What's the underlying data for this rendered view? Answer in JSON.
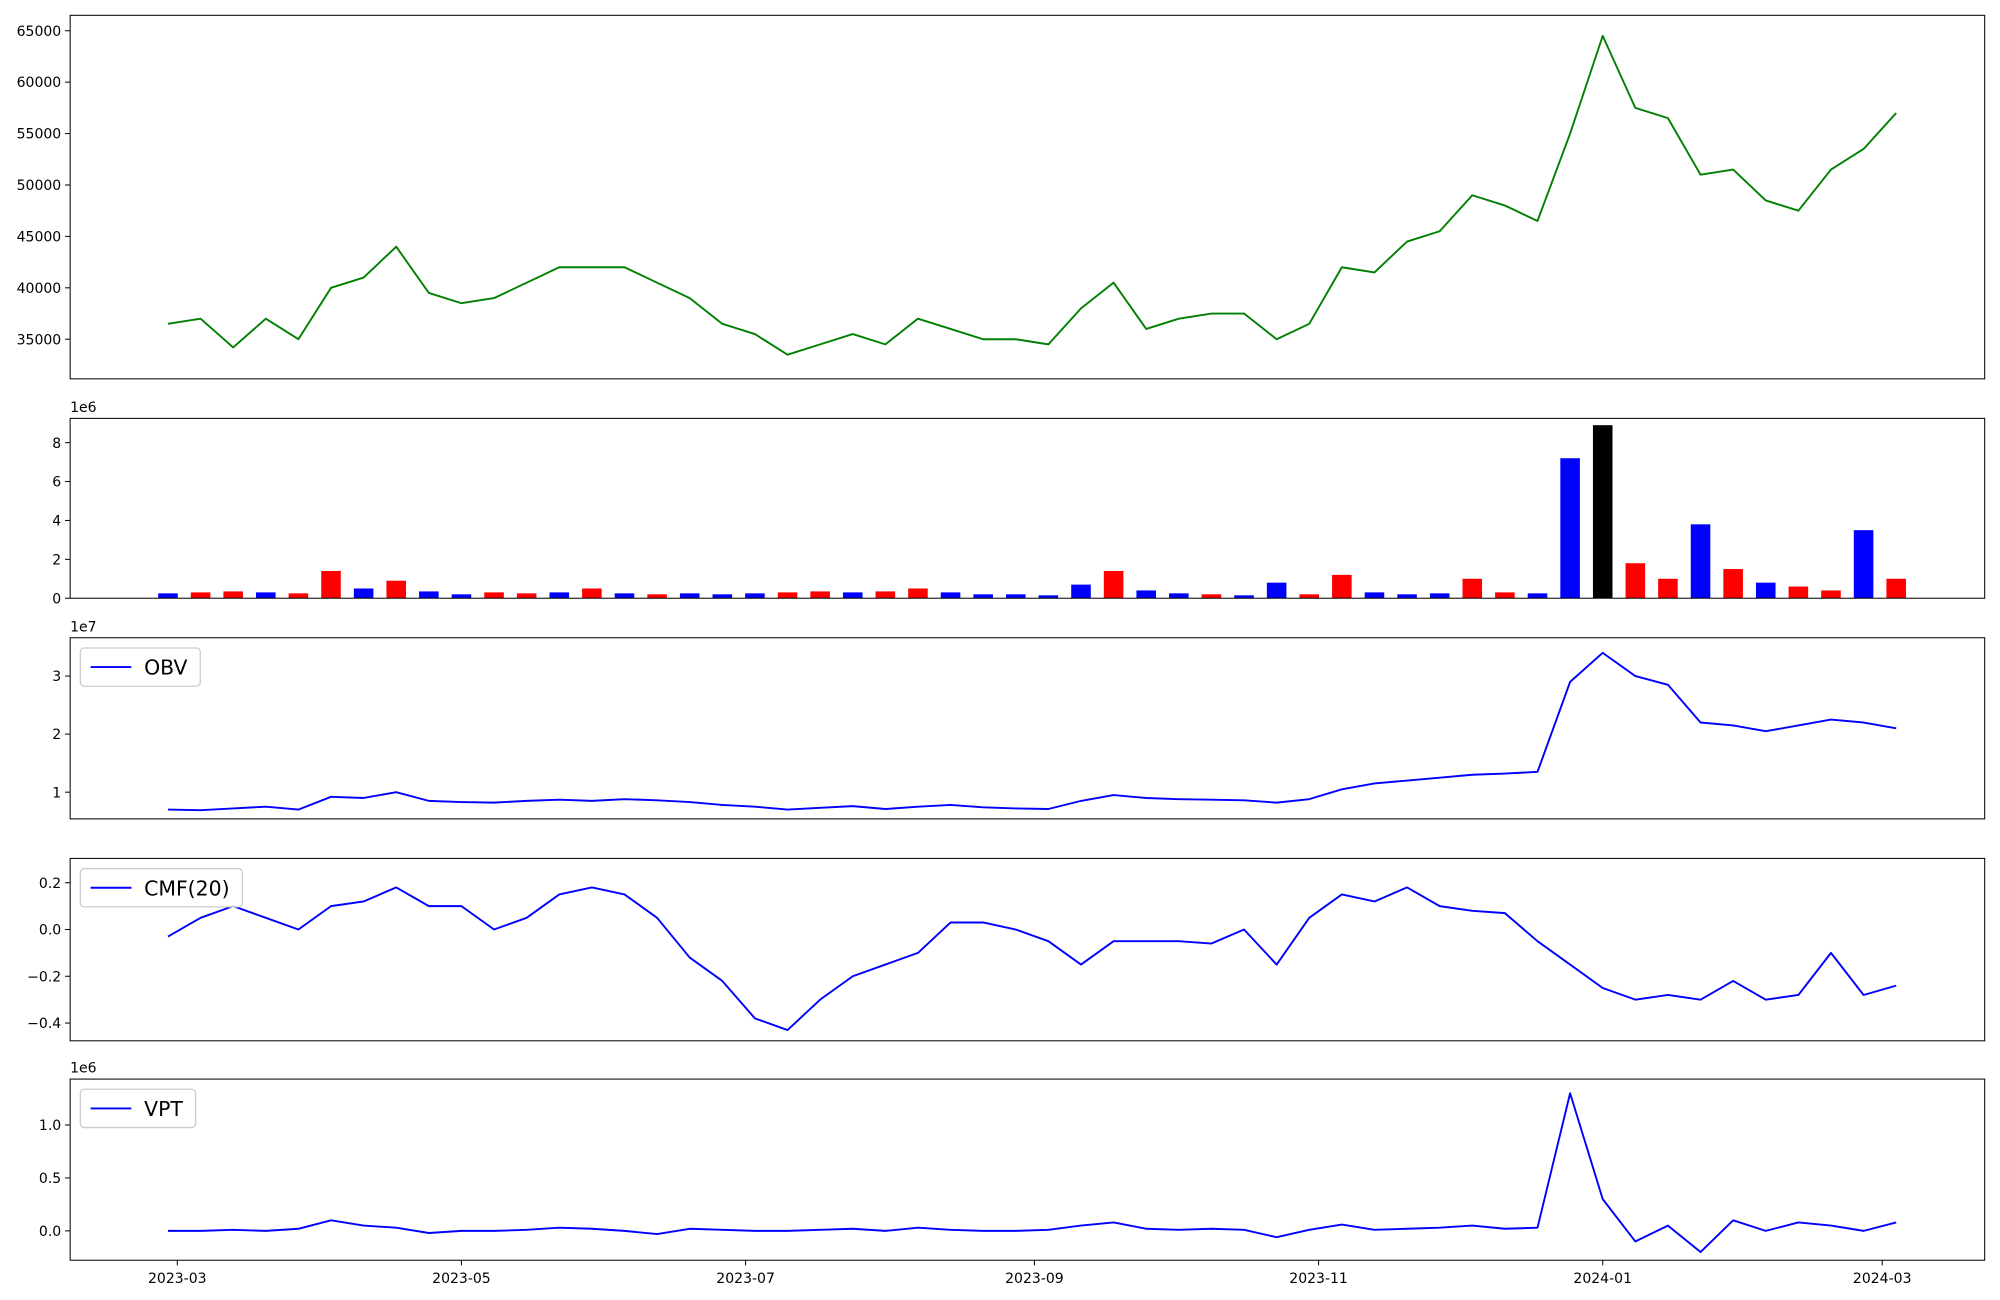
{
  "chart_data": [
    {
      "type": "line",
      "xlim": [
        "2023-02-06",
        "2024-03-23"
      ],
      "ylim": [
        31150,
        66500
      ],
      "yticks": [
        35000,
        40000,
        45000,
        50000,
        55000,
        60000,
        65000
      ],
      "x": [
        "2023-02-27",
        "2023-03-06",
        "2023-03-13",
        "2023-03-20",
        "2023-03-27",
        "2023-04-03",
        "2023-04-10",
        "2023-04-17",
        "2023-04-24",
        "2023-05-01",
        "2023-05-08",
        "2023-05-15",
        "2023-05-22",
        "2023-05-29",
        "2023-06-05",
        "2023-06-12",
        "2023-06-19",
        "2023-06-26",
        "2023-07-03",
        "2023-07-10",
        "2023-07-17",
        "2023-07-24",
        "2023-07-31",
        "2023-08-07",
        "2023-08-14",
        "2023-08-21",
        "2023-08-28",
        "2023-09-04",
        "2023-09-11",
        "2023-09-18",
        "2023-09-25",
        "2023-10-02",
        "2023-10-09",
        "2023-10-16",
        "2023-10-23",
        "2023-10-30",
        "2023-11-06",
        "2023-11-13",
        "2023-11-20",
        "2023-11-27",
        "2023-12-04",
        "2023-12-11",
        "2023-12-18",
        "2023-12-25",
        "2024-01-01",
        "2024-01-08",
        "2024-01-15",
        "2024-01-22",
        "2024-01-29",
        "2024-02-05",
        "2024-02-12",
        "2024-02-19",
        "2024-02-26",
        "2024-03-04"
      ],
      "series": [
        {
          "color": "#008000",
          "values": [
            36500,
            37000,
            34200,
            37000,
            35000,
            40000,
            41000,
            44000,
            39500,
            38500,
            39000,
            40500,
            42000,
            42000,
            42000,
            40500,
            39000,
            36500,
            35500,
            33500,
            34500,
            35500,
            34500,
            37000,
            36000,
            35000,
            35000,
            34500,
            38000,
            40500,
            36000,
            37000,
            37500,
            37500,
            35000,
            36500,
            42000,
            41500,
            44500,
            45500,
            49000,
            48000,
            46500,
            55000,
            64500,
            57500,
            56500,
            51000,
            51500,
            48500,
            47500,
            51500,
            53500,
            57000
          ]
        }
      ]
    },
    {
      "type": "bar",
      "xlim": [
        "2023-02-06",
        "2024-03-23"
      ],
      "ylim": [
        0,
        9250000
      ],
      "offset_label": "1e6",
      "yticks": [
        0,
        {
          "value": 2000000,
          "label": "2"
        },
        {
          "value": 4000000,
          "label": "4"
        },
        {
          "value": 6000000,
          "label": "6"
        },
        {
          "value": 8000000,
          "label": "8"
        }
      ],
      "x": [
        "2023-02-27",
        "2023-03-06",
        "2023-03-13",
        "2023-03-20",
        "2023-03-27",
        "2023-04-03",
        "2023-04-10",
        "2023-04-17",
        "2023-04-24",
        "2023-05-01",
        "2023-05-08",
        "2023-05-15",
        "2023-05-22",
        "2023-05-29",
        "2023-06-05",
        "2023-06-12",
        "2023-06-19",
        "2023-06-26",
        "2023-07-03",
        "2023-07-10",
        "2023-07-17",
        "2023-07-24",
        "2023-07-31",
        "2023-08-07",
        "2023-08-14",
        "2023-08-21",
        "2023-08-28",
        "2023-09-04",
        "2023-09-11",
        "2023-09-18",
        "2023-09-25",
        "2023-10-02",
        "2023-10-09",
        "2023-10-16",
        "2023-10-23",
        "2023-10-30",
        "2023-11-06",
        "2023-11-13",
        "2023-11-20",
        "2023-11-27",
        "2023-12-04",
        "2023-12-11",
        "2023-12-18",
        "2023-12-25",
        "2024-01-01",
        "2024-01-08",
        "2024-01-15",
        "2024-01-22",
        "2024-01-29",
        "2024-02-05",
        "2024-02-12",
        "2024-02-19",
        "2024-02-26",
        "2024-03-04"
      ],
      "values": [
        250000,
        300000,
        350000,
        300000,
        250000,
        1400000,
        500000,
        900000,
        350000,
        200000,
        300000,
        250000,
        300000,
        500000,
        250000,
        200000,
        250000,
        200000,
        250000,
        300000,
        350000,
        300000,
        350000,
        500000,
        300000,
        200000,
        200000,
        150000,
        700000,
        1400000,
        400000,
        250000,
        200000,
        150000,
        800000,
        200000,
        1200000,
        300000,
        200000,
        250000,
        1000000,
        300000,
        250000,
        7200000,
        8900000,
        1800000,
        1000000,
        3800000,
        1500000,
        800000,
        600000,
        400000,
        3500000,
        1000000
      ],
      "colors": [
        "blue",
        "red",
        "red",
        "blue",
        "red",
        "red",
        "blue",
        "red",
        "blue",
        "blue",
        "red",
        "red",
        "blue",
        "red",
        "blue",
        "red",
        "blue",
        "blue",
        "blue",
        "red",
        "red",
        "blue",
        "red",
        "red",
        "blue",
        "blue",
        "blue",
        "blue",
        "blue",
        "red",
        "blue",
        "blue",
        "red",
        "blue",
        "blue",
        "red",
        "red",
        "blue",
        "blue",
        "blue",
        "red",
        "red",
        "blue",
        "blue",
        "black",
        "red",
        "red",
        "blue",
        "red",
        "blue",
        "red",
        "red",
        "blue",
        "red"
      ]
    },
    {
      "type": "line",
      "xlim": [
        "2023-02-06",
        "2024-03-23"
      ],
      "ylim": [
        5400000,
        36600000
      ],
      "offset_label": "1e7",
      "legend": "upper left",
      "yticks": [
        {
          "value": 10000000,
          "label": "1"
        },
        {
          "value": 20000000,
          "label": "2"
        },
        {
          "value": 30000000,
          "label": "3"
        }
      ],
      "x": [
        "2023-02-27",
        "2023-03-06",
        "2023-03-13",
        "2023-03-20",
        "2023-03-27",
        "2023-04-03",
        "2023-04-10",
        "2023-04-17",
        "2023-04-24",
        "2023-05-01",
        "2023-05-08",
        "2023-05-15",
        "2023-05-22",
        "2023-05-29",
        "2023-06-05",
        "2023-06-12",
        "2023-06-19",
        "2023-06-26",
        "2023-07-03",
        "2023-07-10",
        "2023-07-17",
        "2023-07-24",
        "2023-07-31",
        "2023-08-07",
        "2023-08-14",
        "2023-08-21",
        "2023-08-28",
        "2023-09-04",
        "2023-09-11",
        "2023-09-18",
        "2023-09-25",
        "2023-10-02",
        "2023-10-09",
        "2023-10-16",
        "2023-10-23",
        "2023-10-30",
        "2023-11-06",
        "2023-11-13",
        "2023-11-20",
        "2023-11-27",
        "2023-12-04",
        "2023-12-11",
        "2023-12-18",
        "2023-12-25",
        "2024-01-01",
        "2024-01-08",
        "2024-01-15",
        "2024-01-22",
        "2024-01-29",
        "2024-02-05",
        "2024-02-12",
        "2024-02-19",
        "2024-02-26",
        "2024-03-04"
      ],
      "series": [
        {
          "name": "OBV",
          "color": "#0000ff",
          "values": [
            7000000,
            6900000,
            7200000,
            7500000,
            7000000,
            9200000,
            9000000,
            10000000,
            8500000,
            8300000,
            8200000,
            8500000,
            8700000,
            8500000,
            8800000,
            8600000,
            8300000,
            7800000,
            7500000,
            7000000,
            7300000,
            7600000,
            7100000,
            7500000,
            7800000,
            7400000,
            7200000,
            7100000,
            8500000,
            9500000,
            9000000,
            8800000,
            8700000,
            8600000,
            8200000,
            8800000,
            10500000,
            11500000,
            12000000,
            12500000,
            13000000,
            13200000,
            13500000,
            29000000,
            34000000,
            30000000,
            28500000,
            22000000,
            21500000,
            20500000,
            21500000,
            22500000,
            22000000,
            21000000
          ]
        }
      ]
    },
    {
      "type": "line",
      "xlim": [
        "2023-02-06",
        "2024-03-23"
      ],
      "ylim": [
        -0.476,
        0.304
      ],
      "legend": "upper left",
      "yticks": [
        {
          "value": -0.4,
          "label": "−0.4"
        },
        {
          "value": -0.2,
          "label": "−0.2"
        },
        {
          "value": 0,
          "label": "0.0"
        },
        0.2
      ],
      "x": [
        "2023-02-27",
        "2023-03-06",
        "2023-03-13",
        "2023-03-20",
        "2023-03-27",
        "2023-04-03",
        "2023-04-10",
        "2023-04-17",
        "2023-04-24",
        "2023-05-01",
        "2023-05-08",
        "2023-05-15",
        "2023-05-22",
        "2023-05-29",
        "2023-06-05",
        "2023-06-12",
        "2023-06-19",
        "2023-06-26",
        "2023-07-03",
        "2023-07-10",
        "2023-07-17",
        "2023-07-24",
        "2023-07-31",
        "2023-08-07",
        "2023-08-14",
        "2023-08-21",
        "2023-08-28",
        "2023-09-04",
        "2023-09-11",
        "2023-09-18",
        "2023-09-25",
        "2023-10-02",
        "2023-10-09",
        "2023-10-16",
        "2023-10-23",
        "2023-10-30",
        "2023-11-06",
        "2023-11-13",
        "2023-11-20",
        "2023-11-27",
        "2023-12-04",
        "2023-12-11",
        "2023-12-18",
        "2023-12-25",
        "2024-01-01",
        "2024-01-08",
        "2024-01-15",
        "2024-01-22",
        "2024-01-29",
        "2024-02-05",
        "2024-02-12",
        "2024-02-19",
        "2024-02-26",
        "2024-03-04"
      ],
      "series": [
        {
          "name": "CMF(20)",
          "color": "#0000ff",
          "values": [
            -0.03,
            0.05,
            0.1,
            0.05,
            0.0,
            0.1,
            0.12,
            0.18,
            0.1,
            0.1,
            0.0,
            0.05,
            0.15,
            0.18,
            0.15,
            0.05,
            -0.12,
            -0.22,
            -0.38,
            -0.43,
            -0.3,
            -0.2,
            -0.15,
            -0.1,
            0.03,
            0.03,
            0.0,
            -0.05,
            -0.15,
            -0.05,
            -0.05,
            -0.05,
            -0.06,
            0.0,
            -0.15,
            0.05,
            0.15,
            0.12,
            0.18,
            0.1,
            0.08,
            0.07,
            -0.05,
            -0.15,
            -0.25,
            -0.3,
            -0.28,
            -0.3,
            -0.22,
            -0.3,
            -0.28,
            -0.1,
            -0.28,
            -0.24
          ]
        }
      ]
    },
    {
      "type": "line",
      "xlim": [
        "2023-02-06",
        "2024-03-23"
      ],
      "ylim": [
        -277000,
        1434000
      ],
      "offset_label": "1e6",
      "legend": "upper left",
      "yticks": [
        {
          "value": 0,
          "label": "0.0"
        },
        {
          "value": 500000,
          "label": "0.5"
        },
        {
          "value": 1000000,
          "label": "1.0"
        }
      ],
      "xticks": [
        {
          "value": "2023-03-01",
          "label": "2023-03"
        },
        {
          "value": "2023-05-01",
          "label": "2023-05"
        },
        {
          "value": "2023-07-01",
          "label": "2023-07"
        },
        {
          "value": "2023-09-01",
          "label": "2023-09"
        },
        {
          "value": "2023-11-01",
          "label": "2023-11"
        },
        {
          "value": "2024-01-01",
          "label": "2024-01"
        },
        {
          "value": "2024-03-01",
          "label": "2024-03"
        }
      ],
      "x": [
        "2023-02-27",
        "2023-03-06",
        "2023-03-13",
        "2023-03-20",
        "2023-03-27",
        "2023-04-03",
        "2023-04-10",
        "2023-04-17",
        "2023-04-24",
        "2023-05-01",
        "2023-05-08",
        "2023-05-15",
        "2023-05-22",
        "2023-05-29",
        "2023-06-05",
        "2023-06-12",
        "2023-06-19",
        "2023-06-26",
        "2023-07-03",
        "2023-07-10",
        "2023-07-17",
        "2023-07-24",
        "2023-07-31",
        "2023-08-07",
        "2023-08-14",
        "2023-08-21",
        "2023-08-28",
        "2023-09-04",
        "2023-09-11",
        "2023-09-18",
        "2023-09-25",
        "2023-10-02",
        "2023-10-09",
        "2023-10-16",
        "2023-10-23",
        "2023-10-30",
        "2023-11-06",
        "2023-11-13",
        "2023-11-20",
        "2023-11-27",
        "2023-12-04",
        "2023-12-11",
        "2023-12-18",
        "2023-12-25",
        "2024-01-01",
        "2024-01-08",
        "2024-01-15",
        "2024-01-22",
        "2024-01-29",
        "2024-02-05",
        "2024-02-12",
        "2024-02-19",
        "2024-02-26",
        "2024-03-04"
      ],
      "series": [
        {
          "name": "VPT",
          "color": "#0000ff",
          "values": [
            0,
            0,
            10000,
            0,
            20000,
            100000,
            50000,
            30000,
            -20000,
            0,
            0,
            10000,
            30000,
            20000,
            0,
            -30000,
            20000,
            10000,
            0,
            0,
            10000,
            20000,
            0,
            30000,
            10000,
            0,
            0,
            10000,
            50000,
            80000,
            20000,
            10000,
            20000,
            10000,
            -60000,
            10000,
            60000,
            10000,
            20000,
            30000,
            50000,
            20000,
            30000,
            1300000,
            300000,
            -100000,
            50000,
            -200000,
            100000,
            0,
            80000,
            50000,
            0,
            80000
          ]
        }
      ]
    }
  ]
}
